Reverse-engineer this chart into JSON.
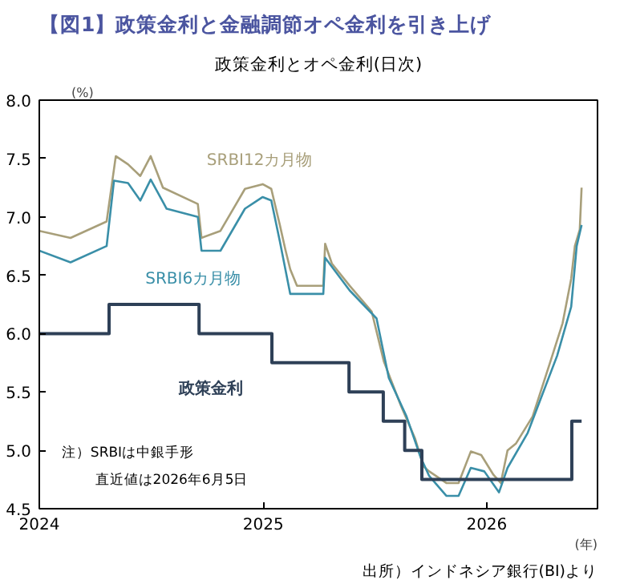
{
  "chart_data": {
    "type": "line",
    "title": "【図1】政策金利と金融調節オペ金利を引き上げ",
    "subtitle": "政策金利とオペ金利(日次)",
    "ylabel": "(%)",
    "xlabel": "(年)",
    "annotations": [
      "注）SRBIは中銀手形",
      "直近値は2026年6月5日",
      "出所）インドネシア銀行(BI)より"
    ],
    "xlim": [
      "2024-01-01",
      "2026-07-01"
    ],
    "xticks": [
      "2024",
      "2025",
      "2026"
    ],
    "ylim": [
      4.5,
      8.0
    ],
    "yticks": [
      {
        "value": 4.5,
        "label": "4.5"
      },
      {
        "value": 5.0,
        "label": "5.0"
      },
      {
        "value": 5.5,
        "label": "5.5"
      },
      {
        "value": 6.0,
        "label": "6.0"
      },
      {
        "value": 6.5,
        "label": "6.5"
      },
      {
        "value": 7.0,
        "label": "7.0"
      },
      {
        "value": 7.5,
        "label": "7.5"
      },
      {
        "value": 8.0,
        "label": "8.0"
      }
    ],
    "grid": false,
    "marker": "none",
    "line_style": "solid",
    "series": [
      {
        "name": "SRBI12カ月物",
        "color": "#a89f7a",
        "x": [
          "2024-01-01",
          "2024-02-21",
          "2024-04-20",
          "2024-05-05",
          "2024-05-25",
          "2024-06-14",
          "2024-07-01",
          "2024-07-21",
          "2024-09-16",
          "2024-09-22",
          "2024-10-23",
          "2024-12-02",
          "2024-12-31",
          "2025-01-14",
          "2025-01-28",
          "2025-02-06",
          "2025-02-14",
          "2025-02-25",
          "2025-04-09",
          "2025-04-12",
          "2025-04-23",
          "2025-05-22",
          "2025-06-27",
          "2025-07-17",
          "2025-08-14",
          "2025-09-06",
          "2025-09-20",
          "2025-09-29",
          "2025-10-27",
          "2025-11-16",
          "2025-12-06",
          "2025-12-23",
          "2026-01-12",
          "2026-01-24",
          "2026-02-04",
          "2026-02-18",
          "2026-03-17",
          "2026-04-15",
          "2026-05-05",
          "2026-05-19",
          "2026-05-25",
          "2026-06-02",
          "2026-06-05"
        ],
        "values": [
          6.88,
          6.82,
          6.96,
          7.52,
          7.45,
          7.35,
          7.52,
          7.25,
          7.11,
          6.82,
          6.88,
          7.24,
          7.28,
          7.24,
          6.93,
          6.72,
          6.55,
          6.41,
          6.41,
          6.77,
          6.6,
          6.41,
          6.19,
          5.76,
          5.38,
          5.1,
          4.86,
          4.82,
          4.72,
          4.72,
          4.99,
          4.96,
          4.79,
          4.72,
          5.0,
          5.06,
          5.29,
          5.76,
          6.09,
          6.47,
          6.75,
          6.89,
          7.25
        ]
      },
      {
        "name": "SRBI6カ月物",
        "color": "#3a8fa8",
        "x": [
          "2024-01-01",
          "2024-02-21",
          "2024-04-20",
          "2024-05-02",
          "2024-05-25",
          "2024-06-14",
          "2024-07-01",
          "2024-07-27",
          "2024-09-16",
          "2024-09-22",
          "2024-10-23",
          "2024-12-02",
          "2024-12-31",
          "2025-01-14",
          "2025-01-28",
          "2025-02-14",
          "2025-04-09",
          "2025-04-12",
          "2025-05-22",
          "2025-07-05",
          "2025-07-25",
          "2025-08-23",
          "2025-09-15",
          "2025-09-29",
          "2025-10-27",
          "2025-11-16",
          "2025-12-06",
          "2025-12-28",
          "2026-01-21",
          "2026-02-04",
          "2026-03-09",
          "2026-04-26",
          "2026-05-19",
          "2026-05-28",
          "2026-06-05"
        ],
        "values": [
          6.71,
          6.61,
          6.75,
          7.31,
          7.29,
          7.14,
          7.32,
          7.07,
          7.0,
          6.71,
          6.71,
          7.07,
          7.17,
          7.14,
          6.79,
          6.34,
          6.34,
          6.65,
          6.37,
          6.13,
          5.62,
          5.29,
          4.94,
          4.78,
          4.61,
          4.61,
          4.85,
          4.82,
          4.64,
          4.85,
          5.15,
          5.81,
          6.23,
          6.75,
          6.93
        ]
      },
      {
        "name": "政策金利",
        "type": "step",
        "color": "#2e4057",
        "x": [
          "2024-01-01",
          "2024-04-24",
          "2024-09-18",
          "2025-01-15",
          "2025-05-21",
          "2025-07-16",
          "2025-08-20",
          "2025-09-17",
          "2026-05-20",
          "2026-06-05"
        ],
        "values": [
          6.0,
          6.25,
          6.0,
          5.75,
          5.5,
          5.25,
          5.0,
          4.75,
          5.25,
          5.25
        ]
      }
    ]
  }
}
